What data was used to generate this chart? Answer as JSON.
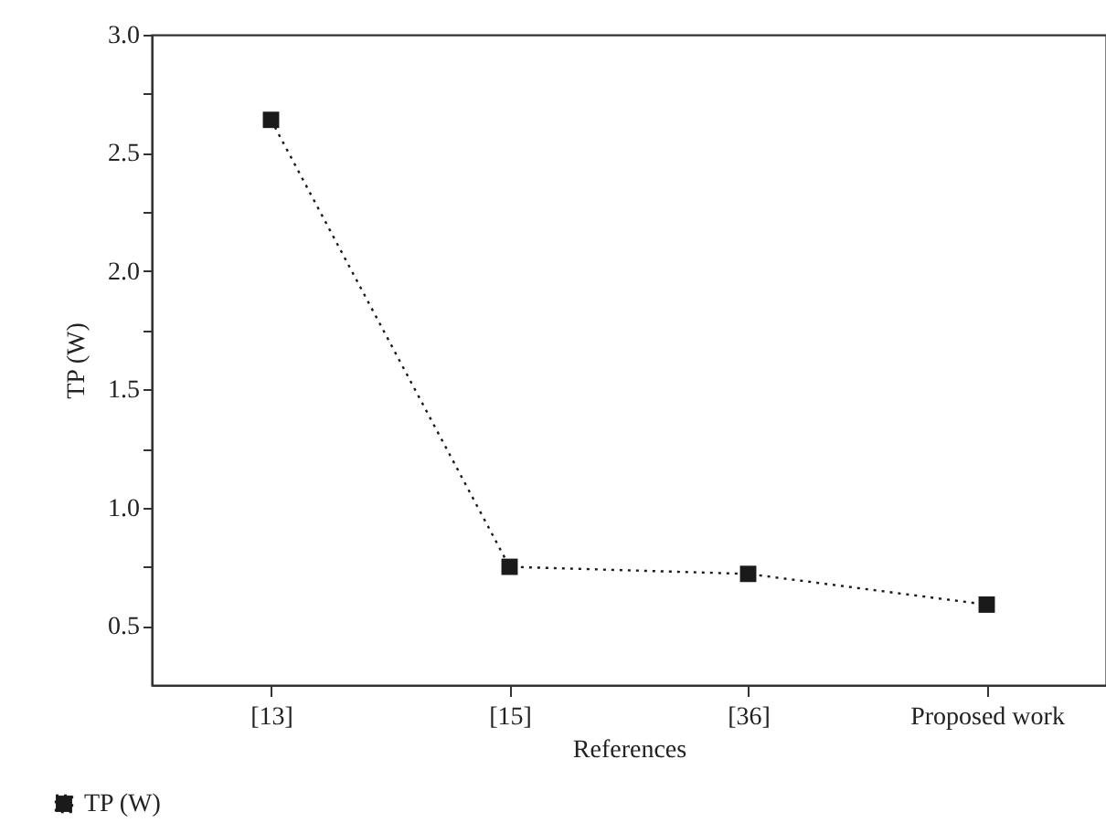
{
  "chart_data": {
    "type": "line",
    "xlabel": "References",
    "ylabel": "TP (W)",
    "categories": [
      "[13]",
      "[15]",
      "[36]",
      "Proposed work"
    ],
    "series": [
      {
        "name": "TP (W)",
        "color": "#1a1a1a",
        "values": [
          2.64,
          0.75,
          0.72,
          0.59
        ]
      }
    ],
    "ylim": [
      0.25,
      3.0
    ],
    "yticks": [
      0.5,
      {
        "value": 0.75,
        "label": null
      },
      "1.0",
      {
        "value": 1.25,
        "label": null
      },
      1.5,
      {
        "value": 1.75,
        "label": null
      },
      "2.0",
      {
        "value": 2.25,
        "label": null
      },
      2.5,
      {
        "value": 2.75,
        "label": null
      },
      "3.0"
    ],
    "grid": false,
    "legend": "bottom left",
    "marker": "square",
    "line_style": "dotted"
  }
}
